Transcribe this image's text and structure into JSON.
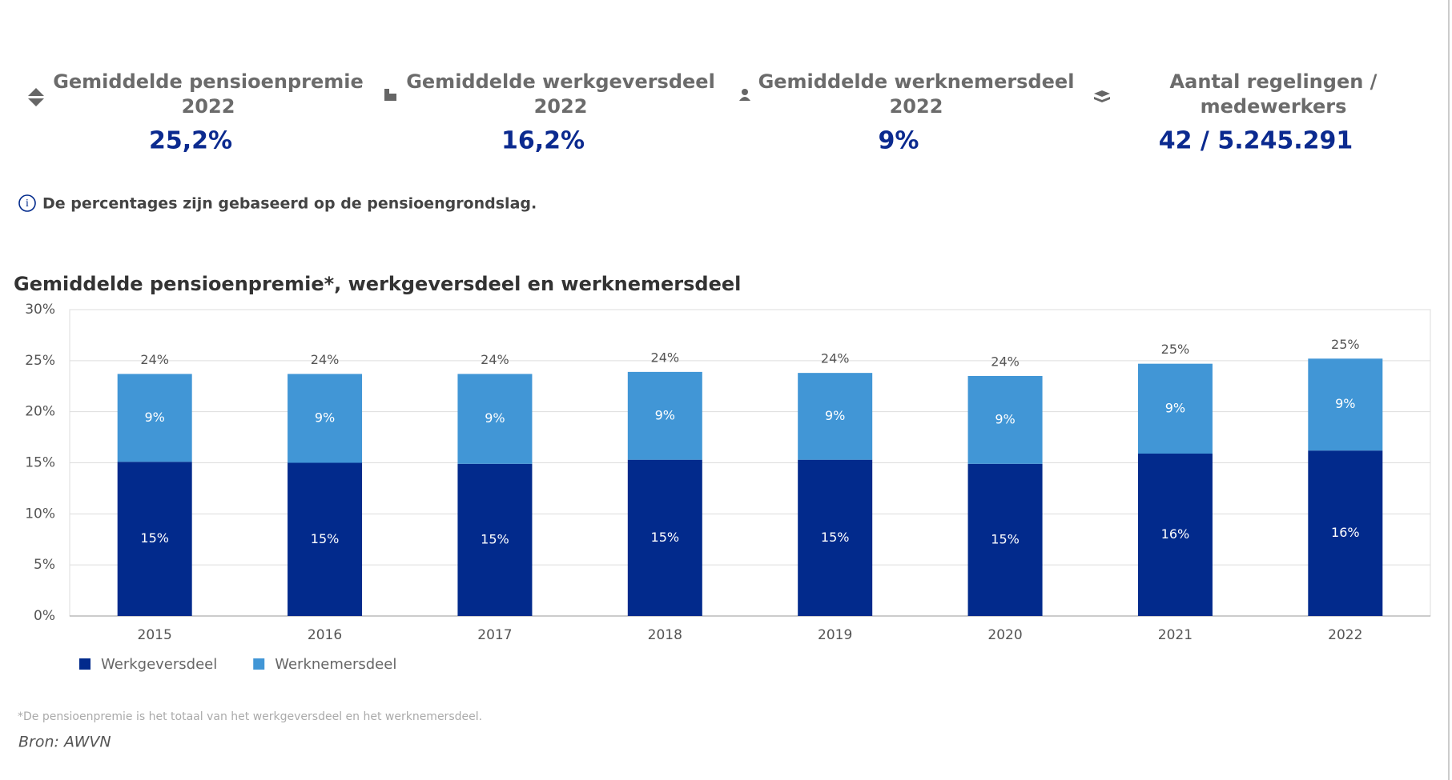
{
  "kpis": [
    {
      "label_lines": [
        "Gemiddelde pensioenpremie",
        "2022"
      ],
      "value": "25,2%"
    },
    {
      "label_lines": [
        "Gemiddelde werkgeversdeel",
        "2022"
      ],
      "value": "16,2%"
    },
    {
      "label_lines": [
        "Gemiddelde werknemersdeel",
        "2022"
      ],
      "value": "9%"
    },
    {
      "label_lines": [
        "Aantal regelingen /",
        "medewerkers"
      ],
      "value": "42 / 5.245.291"
    }
  ],
  "info": "De percentages zijn gebaseerd op de pensioengrondslag.",
  "chart_data": {
    "type": "stacked_bar",
    "title": "Gemiddelde pensioenpremie*, werkgeversdeel en werknemersdeel",
    "categories": [
      "2015",
      "2016",
      "2017",
      "2018",
      "2019",
      "2020",
      "2021",
      "2022"
    ],
    "series": [
      {
        "name": "Werkgeversdeel",
        "color": "#022a8c",
        "values": [
          15.1,
          15.0,
          14.9,
          15.3,
          15.3,
          14.9,
          15.9,
          16.2
        ],
        "value_labels": [
          "15%",
          "15%",
          "15%",
          "15%",
          "15%",
          "15%",
          "16%",
          "16%"
        ]
      },
      {
        "name": "Werknemersdeel",
        "color": "#4196d6",
        "values": [
          8.6,
          8.7,
          8.8,
          8.6,
          8.5,
          8.6,
          8.8,
          9.0
        ],
        "value_labels": [
          "9%",
          "9%",
          "9%",
          "9%",
          "9%",
          "9%",
          "9%",
          "9%"
        ]
      }
    ],
    "totals": [
      23.7,
      23.7,
      23.7,
      23.9,
      23.8,
      23.5,
      24.7,
      25.2
    ],
    "total_labels": [
      "24%",
      "24%",
      "24%",
      "24%",
      "24%",
      "24%",
      "25%",
      "25%"
    ],
    "ylim": [
      0,
      30
    ],
    "yticks": [
      {
        "value": 0,
        "label": "0%"
      },
      {
        "value": 5,
        "label": "5%"
      },
      {
        "value": 10,
        "label": "10%"
      },
      {
        "value": 15,
        "label": "15%"
      },
      {
        "value": 20,
        "label": "20%"
      },
      {
        "value": 25,
        "label": "25%"
      },
      {
        "value": 30,
        "label": "30%"
      }
    ],
    "grid": true
  },
  "footnote": "*De pensioenpremie is het totaal van het werkgeversdeel en het werknemersdeel.",
  "source": "Bron: AWVN"
}
